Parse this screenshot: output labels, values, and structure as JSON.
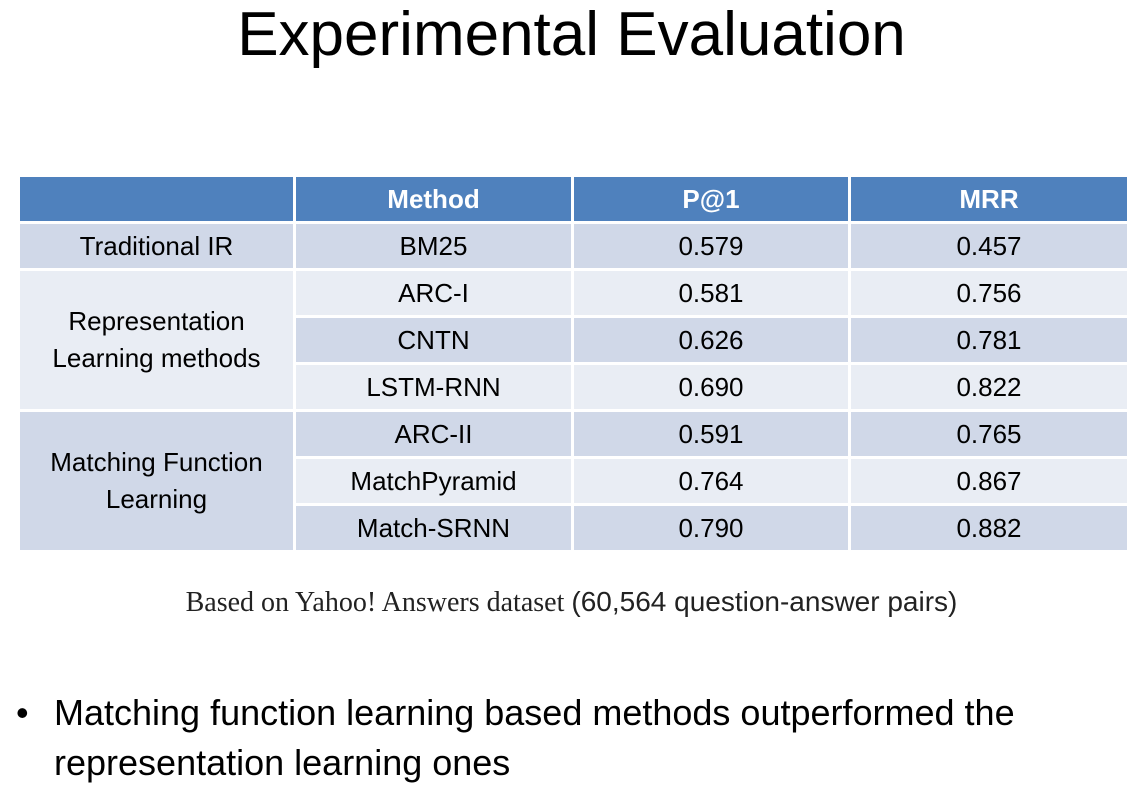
{
  "title": "Experimental Evaluation",
  "table": {
    "headers": [
      "",
      "Method",
      "P@1",
      "MRR"
    ],
    "groups": [
      {
        "label": "Traditional IR",
        "rows": [
          {
            "method": "BM25",
            "p1": "0.579",
            "mrr": "0.457"
          }
        ]
      },
      {
        "label": "Representation Learning methods",
        "rows": [
          {
            "method": "ARC-I",
            "p1": "0.581",
            "mrr": "0.756"
          },
          {
            "method": "CNTN",
            "p1": "0.626",
            "mrr": "0.781"
          },
          {
            "method": "LSTM-RNN",
            "p1": "0.690",
            "mrr": "0.822"
          }
        ]
      },
      {
        "label": "Matching Function Learning",
        "rows": [
          {
            "method": "ARC-II",
            "p1": "0.591",
            "mrr": "0.765"
          },
          {
            "method": "MatchPyramid",
            "p1": "0.764",
            "mrr": "0.867"
          },
          {
            "method": "Match-SRNN",
            "p1": "0.790",
            "mrr": "0.882"
          }
        ]
      }
    ]
  },
  "caption": {
    "text": "Based on Yahoo! Answers dataset",
    "detail": "(60,564 question-answer pairs)"
  },
  "bullets": [
    "Matching function learning based methods outperformed the representation learning ones"
  ],
  "colors": {
    "header": "#4f81bd",
    "row_dark": "#d0d8e8",
    "row_light": "#e9edf4"
  }
}
